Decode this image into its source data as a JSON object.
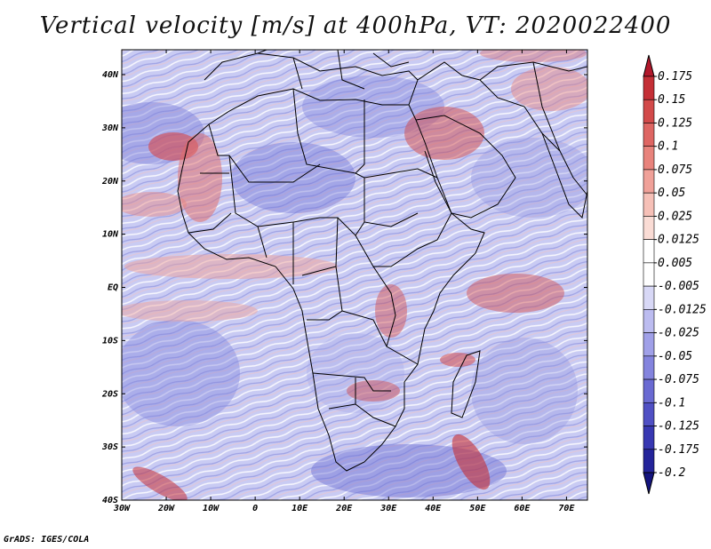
{
  "title": "Vertical velocity [m/s] at 400hPa, VT: 2020022400",
  "footer": "GrADS: IGES/COLA",
  "lat_labels": [
    "40N",
    "30N",
    "20N",
    "10N",
    "EQ",
    "10S",
    "20S",
    "30S",
    "40S"
  ],
  "lon_labels": [
    "30W",
    "20W",
    "10W",
    "0",
    "10E",
    "20E",
    "30E",
    "40E",
    "50E",
    "60E",
    "70E"
  ],
  "colorbar": {
    "labels": [
      "0.175",
      "0.15",
      "0.125",
      "0.1",
      "0.075",
      "0.05",
      "0.025",
      "0.0125",
      "0.005",
      "-0.005",
      "-0.0125",
      "-0.025",
      "-0.05",
      "-0.075",
      "-0.1",
      "-0.125",
      "-0.175",
      "-0.2"
    ],
    "colors": [
      "#b2182b",
      "#c42f36",
      "#d24a4a",
      "#de6663",
      "#e8837c",
      "#f0a199",
      "#f6c0b7",
      "#fadcd5",
      "#ffffff",
      "#ffffff",
      "#d8d8f6",
      "#bcbcf0",
      "#a0a0e8",
      "#8484de",
      "#6a6ad2",
      "#5050c4",
      "#3838b2",
      "#24249a",
      "#14147e"
    ]
  },
  "colors": {
    "background": "#ffffff",
    "map_base": "#cbcdf4",
    "border": "#000000"
  }
}
